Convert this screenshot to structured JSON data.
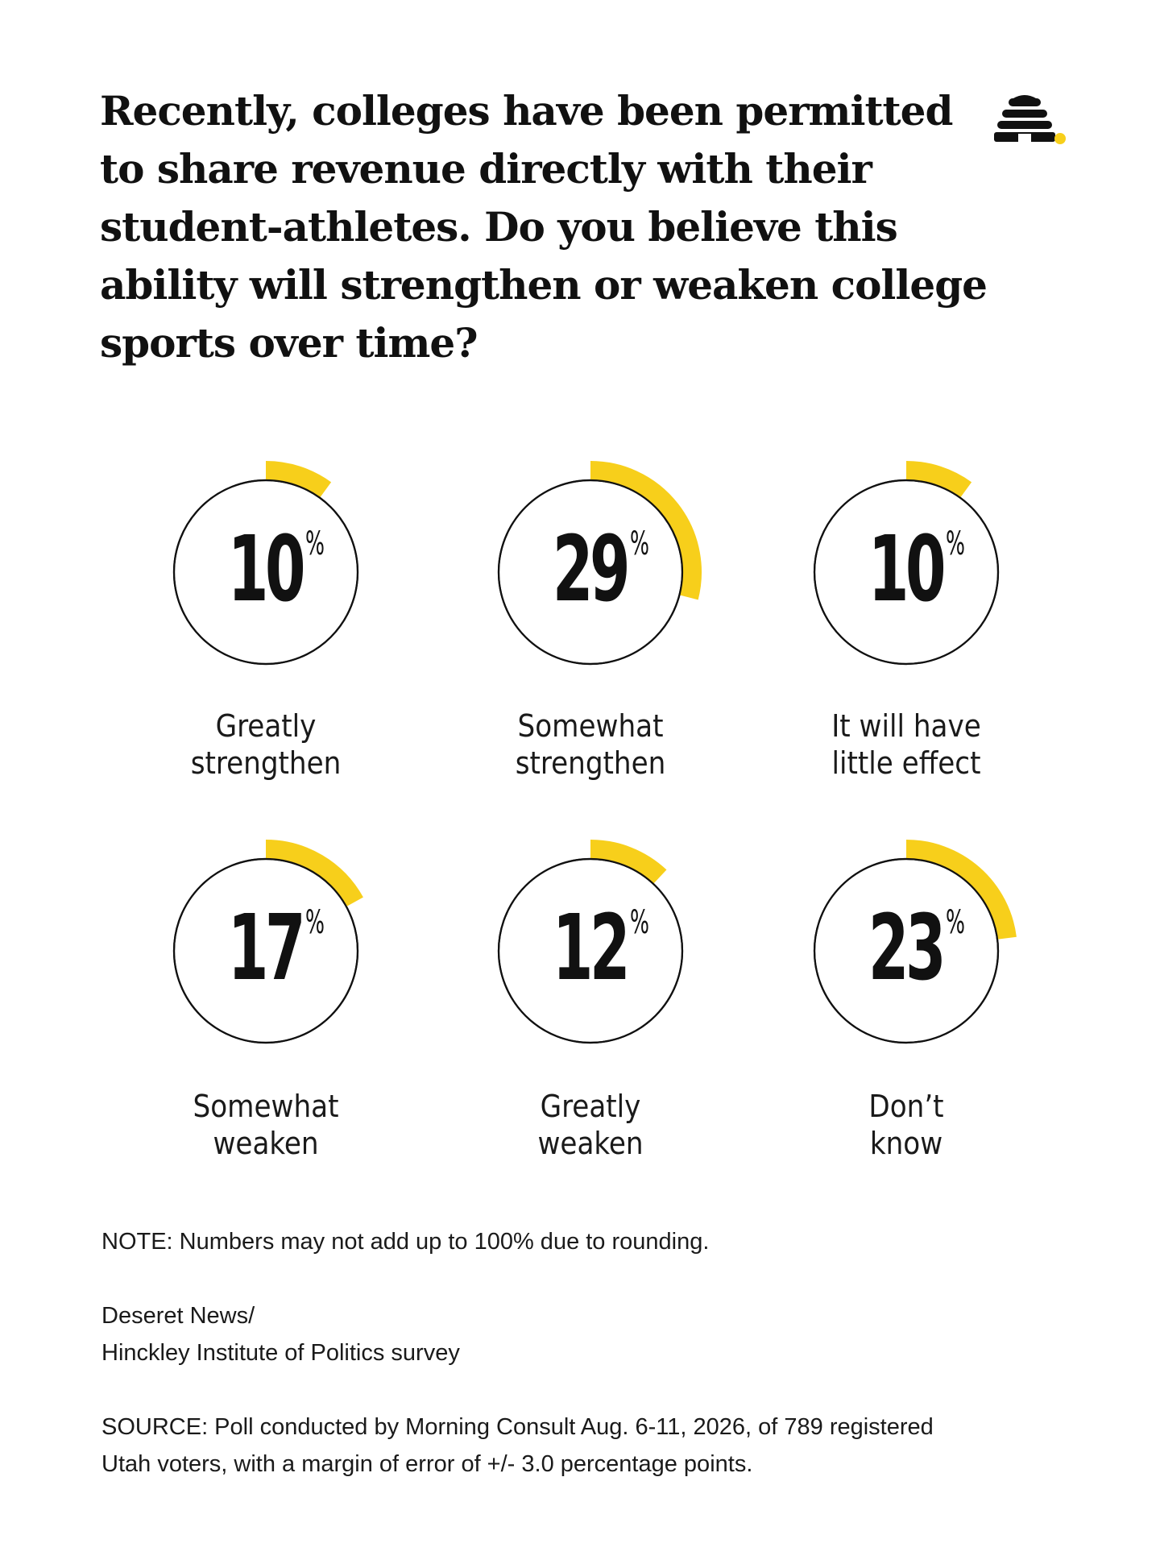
{
  "title": "Recently, colleges have been permitted to share revenue directly with their student-athletes. Do you believe this ability will strengthen or weaken college sports over time?",
  "percent_sign": "%",
  "colors": {
    "accent": "#f7cf1b",
    "ink": "#111111",
    "background": "#ffffff"
  },
  "logo": {
    "icon": "beehive-icon"
  },
  "chart_data": {
    "type": "pie",
    "title": "Recently, colleges have been permitted to share revenue directly with their student-athletes. Do you believe this ability will strengthen or weaken college sports over time?",
    "categories": [
      "Greatly strengthen",
      "Somewhat strengthen",
      "It will have little effect",
      "Somewhat weaken",
      "Greatly weaken",
      "Don’t know"
    ],
    "values": [
      10,
      29,
      10,
      17,
      12,
      23
    ],
    "label_lines": [
      [
        "Greatly",
        "strengthen"
      ],
      [
        "Somewhat",
        "strengthen"
      ],
      [
        "It will have",
        "little effect"
      ],
      [
        "Somewhat",
        "weaken"
      ],
      [
        "Greatly",
        "weaken"
      ],
      [
        "Don’t",
        "know"
      ]
    ],
    "unit": "%"
  },
  "footer": {
    "note": "NOTE: Numbers may not add up to 100% due to rounding.",
    "credit_line1": "Deseret News/",
    "credit_line2": "Hinckley Institute of Politics survey",
    "source_line1": "SOURCE: Poll conducted by Morning Consult Aug. 6-11, 2026, of 789 registered",
    "source_line2": "Utah voters, with a margin of error of +/- 3.0 percentage points."
  }
}
